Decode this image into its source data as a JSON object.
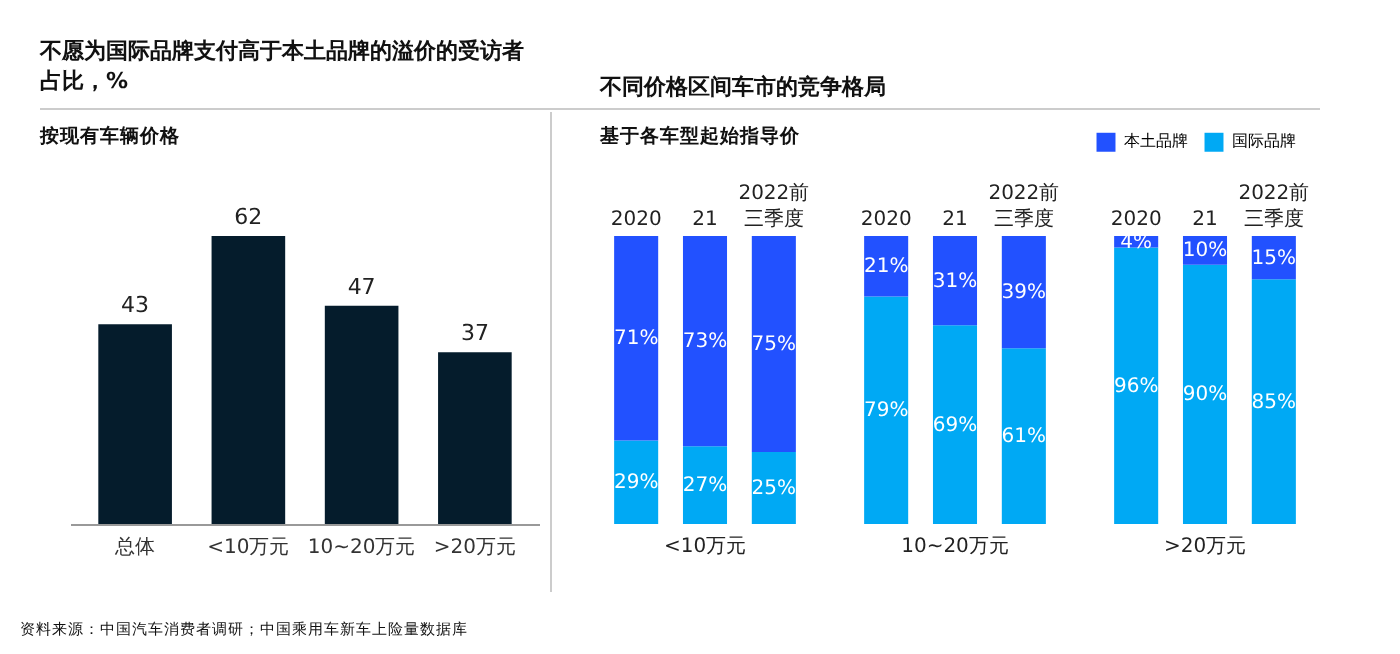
{
  "chart_data": [
    {
      "type": "bar",
      "title": "不愿为国际品牌支付高于本土品牌的溢价的受访者占比，%",
      "subtitle": "按现有车辆价格",
      "categories": [
        "总体",
        "<10万元",
        "10~20万元",
        ">20万元"
      ],
      "values": [
        43,
        62,
        47,
        37
      ],
      "color": "#051c2c",
      "data_labels": true,
      "annotations": [
        "资料来源：中国汽车消费者调研；中国乘用车新车上险量数据库"
      ]
    },
    {
      "type": "bar",
      "title": "不同价格区间车市的竞争格局",
      "subtitle": "基于各车型起始指导价",
      "xlabel": "<10万元",
      "categories": [
        "2020",
        "21",
        "2022前三季度"
      ],
      "stacked": true,
      "legend": "top right",
      "series": [
        {
          "name": "国际品牌",
          "color": "#00a9f4",
          "values": [
            29,
            27,
            25
          ],
          "value_labels": [
            "29%",
            "27%",
            "25%"
          ]
        },
        {
          "name": "本土品牌",
          "color": "#2251ff",
          "values": [
            71,
            73,
            75
          ],
          "value_labels": [
            "71%",
            "73%",
            "75%"
          ]
        }
      ]
    },
    {
      "type": "bar",
      "xlabel": "10~20万元",
      "categories": [
        "2020",
        "21",
        "2022前三季度"
      ],
      "stacked": true,
      "series": [
        {
          "color": "#00a9f4",
          "values": [
            79,
            69,
            61
          ],
          "value_labels": [
            "79%",
            "69%",
            "61%"
          ]
        },
        {
          "color": "#2251ff",
          "values": [
            21,
            31,
            39
          ],
          "value_labels": [
            "21%",
            "31%",
            "39%"
          ]
        }
      ]
    },
    {
      "type": "bar",
      "xlabel": ">20万元",
      "categories": [
        "2020",
        "21",
        "2022前三季度"
      ],
      "stacked": true,
      "series": [
        {
          "color": "#00a9f4",
          "values": [
            96,
            90,
            85
          ],
          "value_labels": [
            "96%",
            "90%",
            "85%"
          ]
        },
        {
          "color": "#2251ff",
          "values": [
            4,
            10,
            15
          ],
          "value_labels": [
            "4%",
            "10%",
            "15%"
          ]
        }
      ]
    }
  ]
}
